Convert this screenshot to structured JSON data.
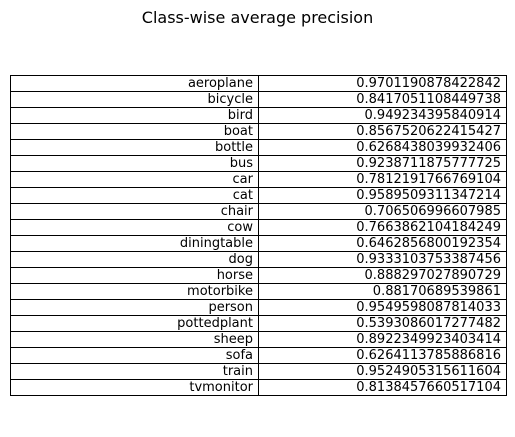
{
  "chart_data": {
    "type": "table",
    "title": "Class-wise average precision",
    "rows": [
      {
        "label": "aeroplane",
        "value": "0.9701190878422842"
      },
      {
        "label": "bicycle",
        "value": "0.8417051108449738"
      },
      {
        "label": "bird",
        "value": "0.949234395840914"
      },
      {
        "label": "boat",
        "value": "0.8567520622415427"
      },
      {
        "label": "bottle",
        "value": "0.6268438039932406"
      },
      {
        "label": "bus",
        "value": "0.9238711875777725"
      },
      {
        "label": "car",
        "value": "0.7812191766769104"
      },
      {
        "label": "cat",
        "value": "0.9589509311347214"
      },
      {
        "label": "chair",
        "value": "0.706506996607985"
      },
      {
        "label": "cow",
        "value": "0.7663862104184249"
      },
      {
        "label": "diningtable",
        "value": "0.6462856800192354"
      },
      {
        "label": "dog",
        "value": "0.9333103753387456"
      },
      {
        "label": "horse",
        "value": "0.888297027890729"
      },
      {
        "label": "motorbike",
        "value": "0.88170689539861"
      },
      {
        "label": "person",
        "value": "0.9549598087814033"
      },
      {
        "label": "pottedplant",
        "value": "0.5393086017277482"
      },
      {
        "label": "sheep",
        "value": "0.8922349923403414"
      },
      {
        "label": "sofa",
        "value": "0.6264113785886816"
      },
      {
        "label": "train",
        "value": "0.9524905315611604"
      },
      {
        "label": "tvmonitor",
        "value": "0.8138457660517104"
      }
    ]
  }
}
